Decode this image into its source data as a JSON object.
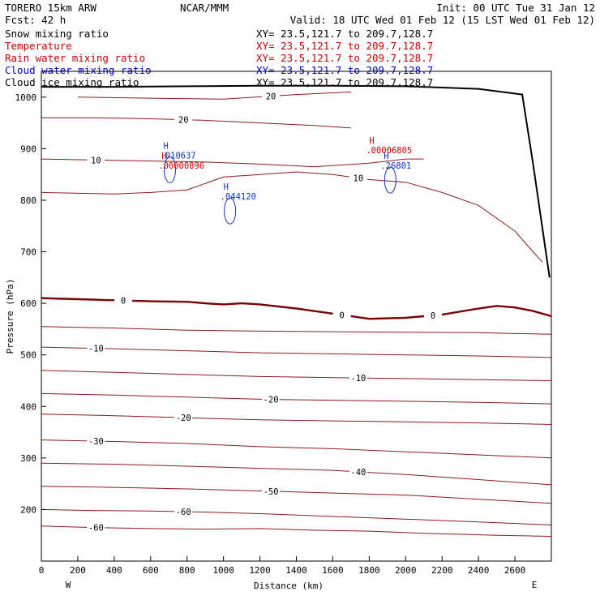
{
  "header": {
    "model": "TORERO  15km ARW",
    "center": "NCAR/MMM",
    "init": "Init: 00 UTC Tue 31 Jan 12",
    "fcst": "Fcst:   42 h",
    "valid": "Valid: 18 UTC Wed 01 Feb 12 (15 LST Wed 01 Feb 12)"
  },
  "fields": [
    {
      "name": "Snow mixing ratio",
      "xy": "XY=  23.5,121.7 to 209.7,128.7",
      "color": "#000000"
    },
    {
      "name": "Temperature",
      "xy": "XY=  23.5,121.7 to 209.7,128.7",
      "color": "#cc0000"
    },
    {
      "name": "Rain water mixing ratio",
      "xy": "XY=  23.5,121.7 to 209.7,128.7",
      "color": "#cc0000"
    },
    {
      "name": "Cloud water mixing ratio",
      "xy": "XY=  23.5,121.7 to 209.7,128.7",
      "color": "#0000cc"
    },
    {
      "name": "Cloud ice mixing ratio",
      "xy": "XY=  23.5,121.7 to 209.7,128.7",
      "color": "#000000"
    }
  ],
  "chart_data": {
    "type": "line",
    "xlabel": "Distance (km)",
    "ylabel": "Pressure (hPa)",
    "xlim": [
      0,
      2800
    ],
    "ylim": [
      1050,
      100
    ],
    "xticks": [
      0,
      200,
      400,
      600,
      800,
      1000,
      1200,
      1400,
      1600,
      1800,
      2000,
      2200,
      2400,
      2600
    ],
    "yticks": [
      200,
      300,
      400,
      500,
      600,
      700,
      800,
      900,
      1000
    ],
    "x_end_labels": {
      "left": "W",
      "right": "E"
    },
    "colors": {
      "temperature": "#8b1a1a",
      "zero_isotherm": "#7a0000",
      "cloud_water": "#1030c0",
      "rain": "#cc0000",
      "terrain": "#000000"
    },
    "temperature_contours": [
      {
        "level": -60,
        "label": "-60",
        "x": [
          0,
          300,
          600,
          900,
          1200,
          1500,
          1800,
          2100,
          2300,
          2500,
          2800
        ],
        "p": [
          168,
          165,
          163,
          162,
          163,
          160,
          158,
          154,
          152,
          150,
          148
        ]
      },
      {
        "level": -60,
        "label": "-60",
        "x": [
          0,
          300,
          600,
          900,
          1200,
          1500,
          1800,
          2100,
          2400,
          2800
        ],
        "p": [
          200,
          198,
          197,
          195,
          192,
          188,
          184,
          180,
          176,
          170
        ]
      },
      {
        "level": -50,
        "label": "-50",
        "x": [
          0,
          400,
          800,
          1200,
          1600,
          2000,
          2400,
          2800
        ],
        "p": [
          245,
          243,
          240,
          236,
          232,
          228,
          220,
          212
        ]
      },
      {
        "level": -40,
        "label": "-40",
        "x": [
          0,
          400,
          800,
          1200,
          1600,
          2000,
          2400,
          2800
        ],
        "p": [
          290,
          288,
          284,
          280,
          276,
          268,
          258,
          248
        ]
      },
      {
        "level": -30,
        "label": "-30",
        "x": [
          0,
          400,
          800,
          1200,
          1600,
          2000,
          2400,
          2800
        ],
        "p": [
          335,
          332,
          328,
          322,
          318,
          312,
          306,
          300
        ]
      },
      {
        "level": -20,
        "label": "-20",
        "x": [
          0,
          400,
          800,
          1200,
          1600,
          2000,
          2400,
          2800
        ],
        "p": [
          385,
          382,
          378,
          374,
          372,
          370,
          368,
          365
        ]
      },
      {
        "level": -20,
        "label": "-20",
        "x": [
          0,
          400,
          800,
          1200,
          1600,
          2000,
          2400,
          2800
        ],
        "p": [
          425,
          422,
          418,
          414,
          412,
          410,
          408,
          405
        ]
      },
      {
        "level": -10,
        "label": "-10",
        "x": [
          0,
          400,
          800,
          1200,
          1600,
          2000,
          2400,
          2800
        ],
        "p": [
          470,
          466,
          462,
          458,
          456,
          454,
          452,
          450
        ]
      },
      {
        "level": -10,
        "label": "-10",
        "x": [
          0,
          400,
          800,
          1200,
          1600,
          2000,
          2400,
          2800
        ],
        "p": [
          515,
          512,
          508,
          504,
          502,
          500,
          498,
          495
        ]
      },
      {
        "level": -10,
        "label": "",
        "x": [
          0,
          400,
          800,
          1200,
          1600,
          2000,
          2400,
          2800
        ],
        "p": [
          555,
          552,
          548,
          546,
          545,
          544,
          543,
          540
        ]
      },
      {
        "level": 0,
        "label": "0",
        "x": [
          0,
          200,
          400,
          600,
          800,
          900,
          1000,
          1100,
          1200,
          1400,
          1600,
          1800,
          2000,
          2200,
          2400,
          2500,
          2600,
          2700,
          2800
        ],
        "p": [
          610,
          608,
          606,
          604,
          603,
          600,
          598,
          600,
          598,
          590,
          580,
          570,
          572,
          578,
          590,
          595,
          592,
          585,
          575
        ]
      },
      {
        "level": 10,
        "label": "10",
        "x": [
          0,
          400,
          600,
          800,
          1000,
          1200,
          1400,
          1600,
          1800,
          2000,
          2200,
          2400,
          2600,
          2700,
          2750
        ],
        "p": [
          815,
          812,
          815,
          820,
          845,
          850,
          855,
          850,
          840,
          835,
          815,
          790,
          740,
          700,
          680
        ]
      },
      {
        "level": 10,
        "label": "10",
        "x": [
          0,
          300,
          600,
          900,
          1200,
          1500,
          1800,
          2000,
          2100
        ],
        "p": [
          880,
          878,
          876,
          874,
          870,
          865,
          872,
          880,
          880
        ]
      },
      {
        "level": 20,
        "label": "20",
        "x": [
          0,
          300,
          600,
          900,
          1200,
          1500,
          1700
        ],
        "p": [
          960,
          960,
          958,
          955,
          950,
          945,
          940
        ]
      },
      {
        "level": 20,
        "label": "20",
        "x": [
          200,
          600,
          1000,
          1400,
          1700
        ],
        "p": [
          1000,
          998,
          996,
          1005,
          1010
        ]
      }
    ],
    "zero_label_positions_km": [
      450,
      1650,
      2150
    ],
    "cloud_water_maxima": [
      {
        "label": "H",
        "value": ".044120",
        "x": 1000,
        "p": 820
      },
      {
        "label": "H",
        "value": ".26801",
        "x": 1880,
        "p": 880
      },
      {
        "label": "H",
        "value": ".010637",
        "x": 670,
        "p": 900
      }
    ],
    "rain_maxima": [
      {
        "label": "H",
        "value": ".00000896",
        "x": 660,
        "p": 880
      },
      {
        "label": "H",
        "value": ".00006805",
        "x": 1800,
        "p": 910
      }
    ],
    "terrain": {
      "x": [
        0,
        400,
        800,
        1200,
        1600,
        2000,
        2400,
        2640,
        2700,
        2790
      ],
      "p": [
        1020,
        1020,
        1021,
        1022,
        1022,
        1021,
        1016,
        1005,
        870,
        650
      ]
    }
  }
}
